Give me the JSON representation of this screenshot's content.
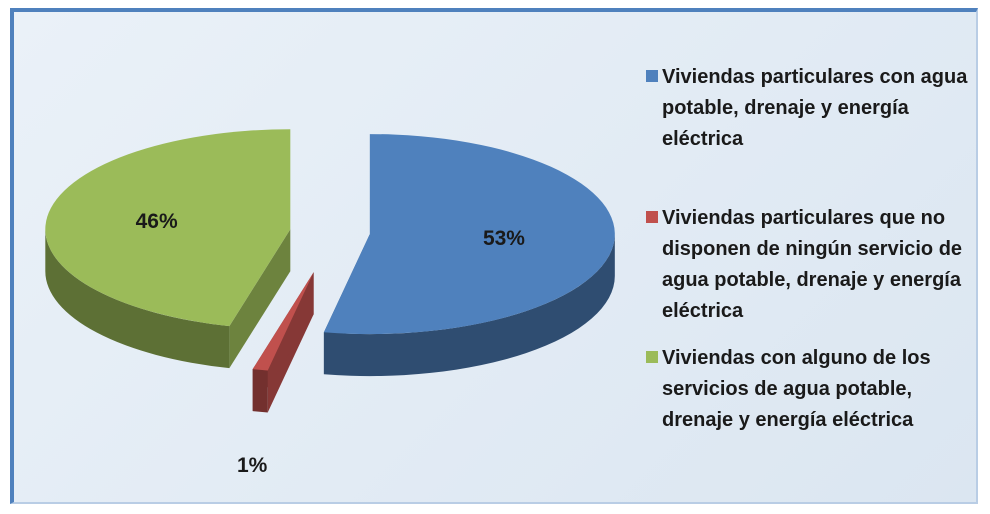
{
  "chart_data": {
    "type": "pie",
    "categories": [
      "Viviendas particulares con agua potable, drenaje y energía eléctrica",
      "Viviendas particulares que no disponen de ningún servicio de agua potable, drenaje y energía eléctrica",
      "Viviendas con alguno de los servicios de agua potable, drenaje y energía eléctrica"
    ],
    "values": [
      53,
      1,
      46
    ],
    "value_labels": [
      "53%",
      "1%",
      "46%"
    ],
    "colors": [
      "#4f81bd",
      "#c0504d",
      "#9bbb59"
    ]
  }
}
